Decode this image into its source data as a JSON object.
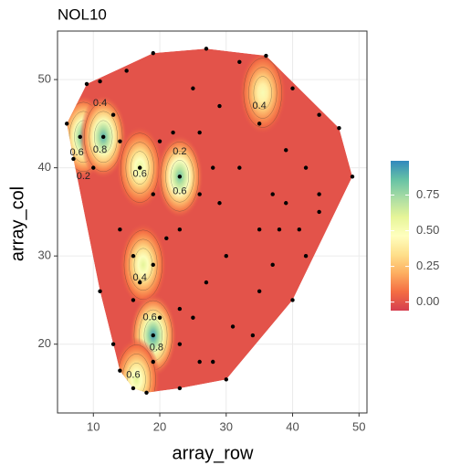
{
  "chart_data": {
    "type": "spatial-heatmap",
    "title": "NOL10",
    "x_label": "array_row",
    "y_label": "array_col",
    "xlim": [
      4.6,
      51.2
    ],
    "ylim": [
      12.2,
      55.5
    ],
    "xticks": [
      10,
      20,
      30,
      40,
      50
    ],
    "yticks": [
      20,
      30,
      40,
      50
    ],
    "grid": true,
    "palette": [
      "#d53e4f",
      "#f46d43",
      "#fdae61",
      "#fee08b",
      "#ffffbf",
      "#e6f598",
      "#abdda4",
      "#66c2a5",
      "#3288bd"
    ],
    "colorbar_lim": [
      -0.06,
      0.99
    ],
    "colorbar_ticks": [
      {
        "value": 0,
        "label": "0.00"
      },
      {
        "value": 0.25,
        "label": "0.25"
      },
      {
        "value": 0.5,
        "label": "0.50"
      },
      {
        "value": 0.75,
        "label": "0.75"
      }
    ],
    "hotspots": {
      "x": [
        8.5,
        11.5,
        17,
        23,
        35.5,
        17.5,
        19,
        16.5
      ],
      "y": [
        43.5,
        43.5,
        40,
        39,
        48.5,
        29,
        21,
        16
      ],
      "values": [
        0.9,
        0.9,
        0.6,
        0.85,
        0.5,
        0.6,
        0.95,
        0.6
      ]
    },
    "spots": {
      "x": [
        9,
        11,
        15,
        19,
        27,
        36,
        32,
        40,
        44,
        47,
        49,
        44,
        40,
        31,
        28,
        23,
        18,
        16,
        14,
        11,
        7,
        6,
        10,
        13,
        14,
        19,
        20,
        22,
        26,
        28,
        29,
        30,
        27,
        25,
        23,
        21,
        17,
        14,
        16,
        13,
        26,
        35,
        35,
        38,
        39,
        42,
        44,
        42,
        37,
        34,
        30,
        23,
        19,
        20,
        19,
        23,
        23,
        25,
        29,
        35,
        39,
        17,
        8,
        11.5,
        19,
        16,
        26,
        32,
        37,
        41
      ],
      "y": [
        49.5,
        49.8,
        51,
        53,
        53.5,
        52.7,
        52,
        49,
        46,
        44.5,
        39,
        35,
        25,
        22,
        18,
        15,
        14.5,
        15,
        17,
        26,
        41,
        45,
        40,
        46,
        43,
        37,
        43,
        44,
        44,
        40,
        36,
        30,
        27,
        23,
        24,
        32,
        27,
        33,
        25,
        20,
        18,
        26,
        33,
        33,
        36,
        40,
        37,
        30,
        29,
        21,
        16,
        20,
        18,
        23,
        29,
        39,
        33,
        49,
        47,
        45,
        42,
        40,
        43.5,
        43.5,
        21,
        30,
        37,
        40,
        37,
        33
      ]
    },
    "contour_labels": [
      {
        "x": 11,
        "y": 47.3,
        "level": 0.4
      },
      {
        "x": 7.5,
        "y": 41.7,
        "level": 0.6
      },
      {
        "x": 11,
        "y": 42,
        "level": 0.8
      },
      {
        "x": 8.5,
        "y": 39,
        "level": 0.2
      },
      {
        "x": 17,
        "y": 39.3,
        "level": 0.6
      },
      {
        "x": 23,
        "y": 41.8,
        "level": 0.2
      },
      {
        "x": 23,
        "y": 37.3,
        "level": 0.6
      },
      {
        "x": 35,
        "y": 47,
        "level": 0.4
      },
      {
        "x": 17,
        "y": 27.5,
        "level": 0.4
      },
      {
        "x": 18.5,
        "y": 23,
        "level": 0.6
      },
      {
        "x": 19.5,
        "y": 19.6,
        "level": 0.8
      },
      {
        "x": 16,
        "y": 16.5,
        "level": 0.6
      }
    ]
  }
}
